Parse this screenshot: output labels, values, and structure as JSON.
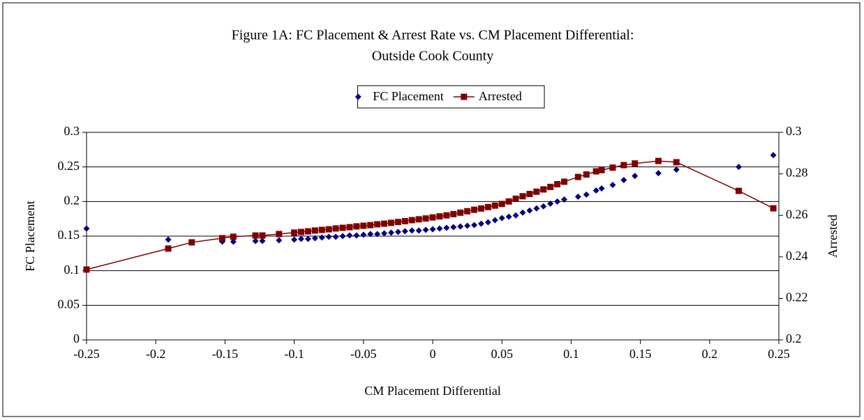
{
  "chart_data": {
    "type": "scatter",
    "title": "Figure 1A:  FC Placement & Arrest Rate vs. CM Placement Differential:",
    "subtitle": "Outside Cook County",
    "x_label": "CM Placement Differential",
    "y_label": "FC Placement",
    "y2_label": "Arrested",
    "legend": "top",
    "grid": true,
    "x": [
      -0.25,
      -0.191,
      -0.174,
      -0.152,
      -0.144,
      -0.128,
      -0.123,
      -0.111,
      -0.1,
      -0.095,
      -0.09,
      -0.085,
      -0.08,
      -0.075,
      -0.07,
      -0.065,
      -0.06,
      -0.055,
      -0.05,
      -0.045,
      -0.04,
      -0.035,
      -0.03,
      -0.025,
      -0.02,
      -0.015,
      -0.01,
      -0.005,
      0,
      0.005,
      0.01,
      0.015,
      0.02,
      0.025,
      0.03,
      0.035,
      0.04,
      0.045,
      0.05,
      0.055,
      0.06,
      0.065,
      0.07,
      0.075,
      0.08,
      0.085,
      0.09,
      0.095,
      0.105,
      0.111,
      0.118,
      0.122,
      0.13,
      0.138,
      0.146,
      0.163,
      0.176,
      0.221,
      0.246
    ],
    "series": [
      {
        "name": "FC Placement",
        "color": "#000080",
        "mark": "scatter",
        "values": [
          0.161,
          0.145,
          null,
          0.142,
          0.142,
          0.143,
          0.143,
          0.144,
          0.145,
          0.146,
          0.146,
          0.147,
          0.148,
          0.149,
          0.149,
          0.15,
          0.151,
          0.151,
          0.152,
          0.153,
          0.153,
          0.154,
          0.155,
          0.156,
          0.157,
          0.158,
          0.158,
          0.159,
          0.16,
          0.161,
          0.162,
          0.163,
          0.164,
          0.165,
          0.166,
          0.168,
          0.17,
          0.173,
          0.176,
          0.178,
          0.18,
          0.184,
          0.187,
          0.19,
          0.193,
          0.197,
          0.2,
          0.203,
          0.207,
          0.21,
          0.216,
          0.219,
          0.224,
          0.231,
          0.237,
          0.241,
          0.246,
          0.25,
          0.267
        ]
      },
      {
        "name": "Arrested",
        "color": "#800000",
        "mark": "line",
        "axis": "y2",
        "values": [
          0.2339,
          0.244,
          0.247,
          0.249,
          0.2497,
          0.2503,
          0.2503,
          0.251,
          0.2517,
          0.252,
          0.2523,
          0.2527,
          0.253,
          0.2533,
          0.2537,
          0.254,
          0.2543,
          0.2547,
          0.255,
          0.2553,
          0.2557,
          0.256,
          0.2564,
          0.2568,
          0.2572,
          0.2577,
          0.2581,
          0.2585,
          0.259,
          0.2595,
          0.26,
          0.2606,
          0.2613,
          0.262,
          0.2627,
          0.2633,
          0.264,
          0.2647,
          0.2655,
          0.2667,
          0.268,
          0.2692,
          0.2703,
          0.2714,
          0.2725,
          0.2737,
          0.275,
          0.2762,
          0.2785,
          0.2797,
          0.2812,
          0.2818,
          0.283,
          0.2842,
          0.285,
          0.2862,
          0.2856,
          0.2718,
          0.2634
        ]
      }
    ],
    "xlim": [
      -0.25,
      0.25
    ],
    "xticks": [
      -0.25,
      -0.2,
      -0.15,
      -0.1,
      -0.05,
      0,
      0.05,
      0.1,
      0.15,
      0.2,
      0.25
    ],
    "ylim": [
      0,
      0.3
    ],
    "yticks": [
      0,
      0.05,
      0.1,
      0.15,
      0.2,
      0.25,
      0.3
    ],
    "y2lim": [
      0.2,
      0.3
    ],
    "y2ticks": [
      0.2,
      0.22,
      0.24,
      0.26,
      0.28,
      0.3
    ]
  }
}
